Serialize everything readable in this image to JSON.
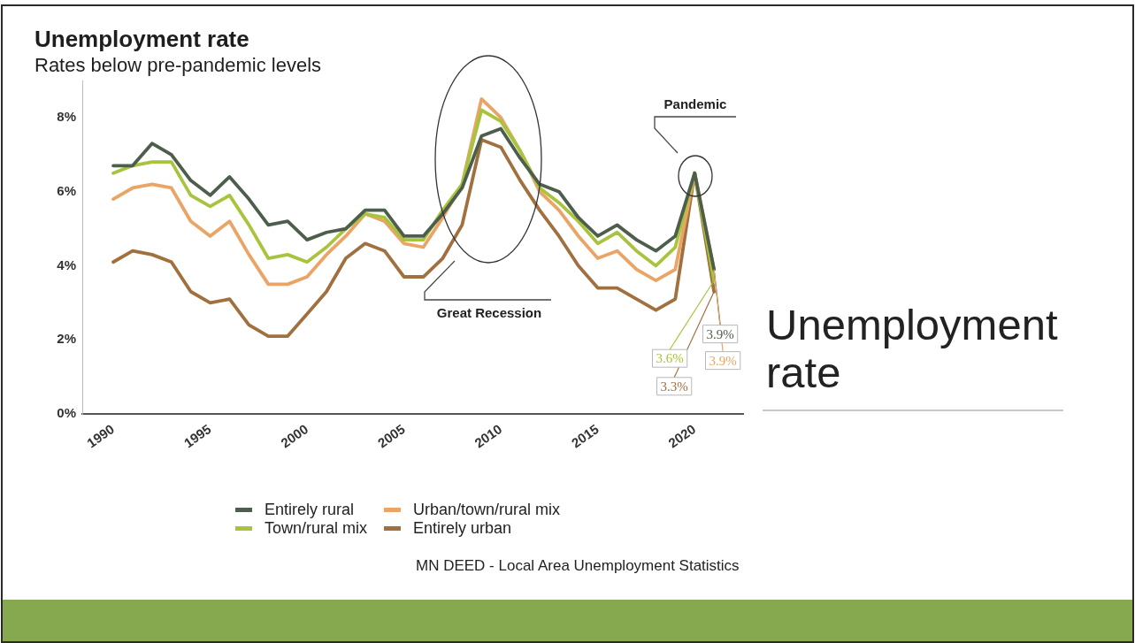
{
  "chart_data": {
    "type": "line",
    "title": "Unemployment rate",
    "subtitle": "Rates below pre-pandemic levels",
    "x": [
      1990,
      1991,
      1992,
      1993,
      1994,
      1995,
      1996,
      1997,
      1998,
      1999,
      2000,
      2001,
      2002,
      2003,
      2004,
      2005,
      2006,
      2007,
      2008,
      2009,
      2010,
      2011,
      2012,
      2013,
      2014,
      2015,
      2016,
      2017,
      2018,
      2019,
      2020,
      2021
    ],
    "series": [
      {
        "name": "Entirely rural",
        "color": "#4d5e4c",
        "values": [
          6.7,
          6.7,
          7.3,
          7.0,
          6.3,
          5.9,
          6.4,
          5.8,
          5.1,
          5.2,
          4.7,
          4.9,
          5.0,
          5.5,
          5.5,
          4.8,
          4.8,
          5.4,
          6.1,
          7.5,
          7.7,
          6.9,
          6.2,
          6.0,
          5.3,
          4.8,
          5.1,
          4.7,
          4.4,
          4.8,
          6.5,
          3.9
        ],
        "value_labels": [
          null,
          null,
          null,
          null,
          null,
          null,
          null,
          null,
          null,
          null,
          null,
          null,
          null,
          null,
          null,
          null,
          null,
          null,
          null,
          null,
          null,
          null,
          null,
          null,
          null,
          null,
          null,
          null,
          null,
          null,
          null,
          "3.9%"
        ]
      },
      {
        "name": "Town/rural mix",
        "color": "#a8c43e",
        "values": [
          6.5,
          6.7,
          6.8,
          6.8,
          5.9,
          5.6,
          5.9,
          5.1,
          4.2,
          4.3,
          4.1,
          4.5,
          5.0,
          5.4,
          5.3,
          4.7,
          4.7,
          5.5,
          6.2,
          8.2,
          7.9,
          7.1,
          6.1,
          5.7,
          5.2,
          4.6,
          4.9,
          4.4,
          4.0,
          4.5,
          6.5,
          3.6
        ],
        "value_labels": [
          null,
          null,
          null,
          null,
          null,
          null,
          null,
          null,
          null,
          null,
          null,
          null,
          null,
          null,
          null,
          null,
          null,
          null,
          null,
          null,
          null,
          null,
          null,
          null,
          null,
          null,
          null,
          null,
          null,
          null,
          null,
          "3.6%"
        ]
      },
      {
        "name": "Urban/town/rural mix",
        "color": "#eaa566",
        "values": [
          5.8,
          6.1,
          6.2,
          6.1,
          5.2,
          4.8,
          5.2,
          4.3,
          3.5,
          3.5,
          3.7,
          4.3,
          4.8,
          5.4,
          5.2,
          4.6,
          4.5,
          5.3,
          6.2,
          8.5,
          8.0,
          7.1,
          6.0,
          5.5,
          4.8,
          4.2,
          4.4,
          3.9,
          3.6,
          3.9,
          6.5,
          3.9
        ],
        "value_labels": [
          null,
          null,
          null,
          null,
          null,
          null,
          null,
          null,
          null,
          null,
          null,
          null,
          null,
          null,
          null,
          null,
          null,
          null,
          null,
          null,
          null,
          null,
          null,
          null,
          null,
          null,
          null,
          null,
          null,
          null,
          null,
          "3.9%"
        ]
      },
      {
        "name": "Entirely urban",
        "color": "#a1703f",
        "values": [
          4.1,
          4.4,
          4.3,
          4.1,
          3.3,
          3.0,
          3.1,
          2.4,
          2.1,
          2.1,
          2.7,
          3.3,
          4.2,
          4.6,
          4.4,
          3.7,
          3.7,
          4.2,
          5.1,
          7.4,
          7.2,
          6.3,
          5.5,
          4.8,
          4.0,
          3.4,
          3.4,
          3.1,
          2.8,
          3.1,
          6.5,
          3.3
        ],
        "value_labels": [
          null,
          null,
          null,
          null,
          null,
          null,
          null,
          null,
          null,
          null,
          null,
          null,
          null,
          null,
          null,
          null,
          null,
          null,
          null,
          null,
          null,
          null,
          null,
          null,
          null,
          null,
          null,
          null,
          null,
          null,
          null,
          "3.3%"
        ]
      }
    ],
    "xlim": [
      1988.4,
      2022.5
    ],
    "xticks": [
      1990,
      1995,
      2000,
      2005,
      2010,
      2015,
      2020
    ],
    "ylim": [
      0,
      9
    ],
    "yticks": [
      {
        "value": 0,
        "label": "0%"
      },
      {
        "value": 2,
        "label": "2%"
      },
      {
        "value": 4,
        "label": "4%"
      },
      {
        "value": 6,
        "label": "6%"
      },
      {
        "value": 8,
        "label": "8%"
      }
    ],
    "grid": false,
    "legend": "bottom",
    "annotations": [
      "Great Recession",
      "Pandemic",
      "Unemployment rate",
      "MN DEED - Local Area Unemployment Statistics"
    ]
  }
}
